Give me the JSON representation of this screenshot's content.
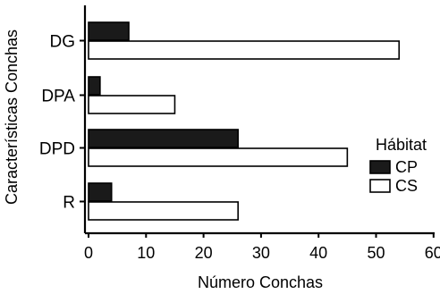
{
  "chart_data": {
    "type": "bar",
    "orientation": "horizontal",
    "categories": [
      "DG",
      "DPA",
      "DPD",
      "R"
    ],
    "series": [
      {
        "name": "CP",
        "values": [
          7,
          2,
          26,
          4
        ],
        "color": "#1a1a1a"
      },
      {
        "name": "CS",
        "values": [
          54,
          15,
          45,
          26
        ],
        "color": "#ffffff"
      }
    ],
    "xlabel": "Número Conchas",
    "ylabel": "Características Conchas",
    "xlim": [
      0,
      60
    ],
    "xticks": [
      "0",
      "10",
      "20",
      "30",
      "40",
      "50",
      "60"
    ],
    "grid": false,
    "legend": {
      "title": "Hábitat",
      "placement": "right",
      "entries": [
        "CP",
        "CS"
      ]
    }
  }
}
